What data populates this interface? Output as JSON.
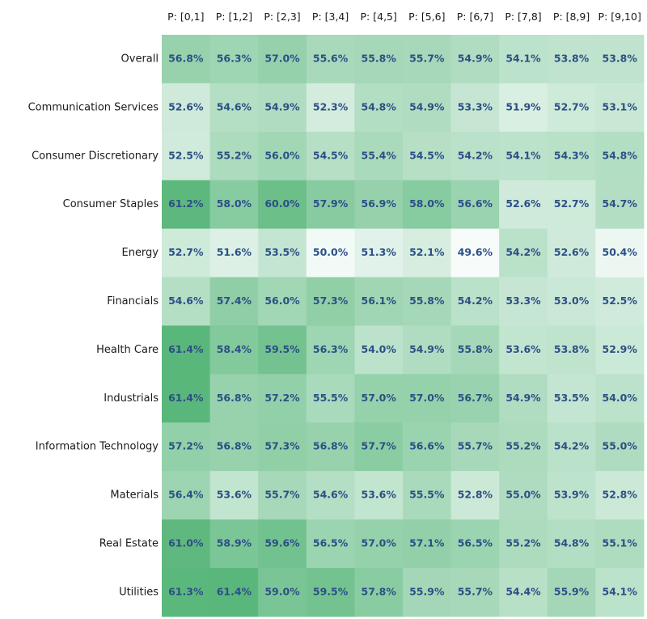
{
  "chart_data": {
    "type": "heatmap",
    "title": "",
    "xlabel": "",
    "ylabel": "",
    "columns": [
      "P: [0,1]",
      "P: [1,2]",
      "P: [2,3]",
      "P: [3,4]",
      "P: [4,5]",
      "P: [5,6]",
      "P: [6,7]",
      "P: [7,8]",
      "P: [8,9]",
      "P: [9,10]"
    ],
    "rows": [
      "Overall",
      "Communication Services",
      "Consumer Discretionary",
      "Consumer Staples",
      "Energy",
      "Financials",
      "Health Care",
      "Industrials",
      "Information Technology",
      "Materials",
      "Real Estate",
      "Utilities"
    ],
    "values": [
      [
        56.8,
        56.3,
        57.0,
        55.6,
        55.8,
        55.7,
        54.9,
        54.1,
        53.8,
        53.8
      ],
      [
        52.6,
        54.6,
        54.9,
        52.3,
        54.8,
        54.9,
        53.3,
        51.9,
        52.7,
        53.1
      ],
      [
        52.5,
        55.2,
        56.0,
        54.5,
        55.4,
        54.5,
        54.2,
        54.1,
        54.3,
        54.8
      ],
      [
        61.2,
        58.0,
        60.0,
        57.9,
        56.9,
        58.0,
        56.6,
        52.6,
        52.7,
        54.7
      ],
      [
        52.7,
        51.6,
        53.5,
        50.0,
        51.3,
        52.1,
        49.6,
        54.2,
        52.6,
        50.4
      ],
      [
        54.6,
        57.4,
        56.0,
        57.3,
        56.1,
        55.8,
        54.2,
        53.3,
        53.0,
        52.5
      ],
      [
        61.4,
        58.4,
        59.5,
        56.3,
        54.0,
        54.9,
        55.8,
        53.6,
        53.8,
        52.9
      ],
      [
        61.4,
        56.8,
        57.2,
        55.5,
        57.0,
        57.0,
        56.7,
        54.9,
        53.5,
        54.0
      ],
      [
        57.2,
        56.8,
        57.3,
        56.8,
        57.7,
        56.6,
        55.7,
        55.2,
        54.2,
        55.0
      ],
      [
        56.4,
        53.6,
        55.7,
        54.6,
        53.6,
        55.5,
        52.8,
        55.0,
        53.9,
        52.8
      ],
      [
        61.0,
        58.9,
        59.6,
        56.5,
        57.0,
        57.1,
        56.5,
        55.2,
        54.8,
        55.1
      ],
      [
        61.3,
        61.4,
        59.0,
        59.5,
        57.8,
        55.9,
        55.7,
        54.4,
        55.9,
        54.1
      ]
    ],
    "value_suffix": "%",
    "colorscale": {
      "low": "#f7fcfb",
      "high": "#5ab77b",
      "min": 49.6,
      "max": 61.4
    },
    "cell_text_color": "#2c4f86",
    "grid": false,
    "legend": "none"
  }
}
